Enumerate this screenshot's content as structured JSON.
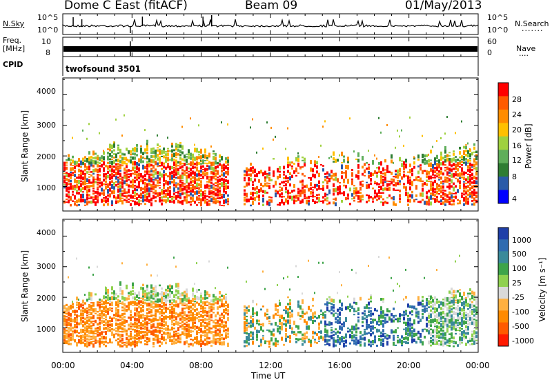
{
  "header": {
    "station": "Dome C East (fitACF)",
    "beam": "Beam 09",
    "date": "01/May/2013"
  },
  "top_panels": {
    "nsky_label": "N.Sky",
    "nsky_ticks": [
      "10^5",
      "10^0"
    ],
    "nsearch_label": "N.Search",
    "freq_label_1": "Freq.",
    "freq_label_2": "[MHz]",
    "freq_ticks": [
      "10",
      "8"
    ],
    "nave_label": "Nave",
    "nave_ticks": [
      "60",
      "0"
    ],
    "cpid_label": "CPID",
    "cpid_value": "twofsound 3501"
  },
  "chart_data": [
    {
      "type": "heatmap",
      "panel": "power",
      "ylabel": "Slant Range [km]",
      "y_ticks": [
        "1000",
        "2000",
        "3000",
        "4000"
      ],
      "ylim": [
        200,
        4550
      ],
      "xlim_hours": [
        0,
        24
      ],
      "colorbar_label": "Power [dB]",
      "colorbar_ticks": [
        "4",
        "8",
        "12",
        "16",
        "20",
        "24",
        "28"
      ],
      "colors": [
        "#0000ff",
        "#2a5aa8",
        "#2e7d32",
        "#5fae5a",
        "#9fd13f",
        "#ffc000",
        "#ff8c00",
        "#ff5a00",
        "#ff0000"
      ]
    },
    {
      "type": "heatmap",
      "panel": "velocity",
      "ylabel": "Slant Range [km]",
      "y_ticks": [
        "1000",
        "2000",
        "3000",
        "4000"
      ],
      "ylim": [
        200,
        4550
      ],
      "xlim_hours": [
        0,
        24
      ],
      "colorbar_label": "Velocity [m s⁻¹]",
      "colorbar_ticks": [
        "1000",
        "500",
        "100",
        "25",
        "-25",
        "-100",
        "-500",
        "-1000"
      ],
      "colors": [
        "#1f3fa8",
        "#2f6bb0",
        "#3a8a9a",
        "#3ea44a",
        "#8fd14f",
        "#d9d9d9",
        "#ffb040",
        "#ff8a00",
        "#ff5a00",
        "#ff1a00"
      ],
      "xlabel": "Time UT",
      "x_ticks": [
        "00:00",
        "04:00",
        "08:00",
        "12:00",
        "16:00",
        "20:00",
        "00:00"
      ]
    }
  ]
}
